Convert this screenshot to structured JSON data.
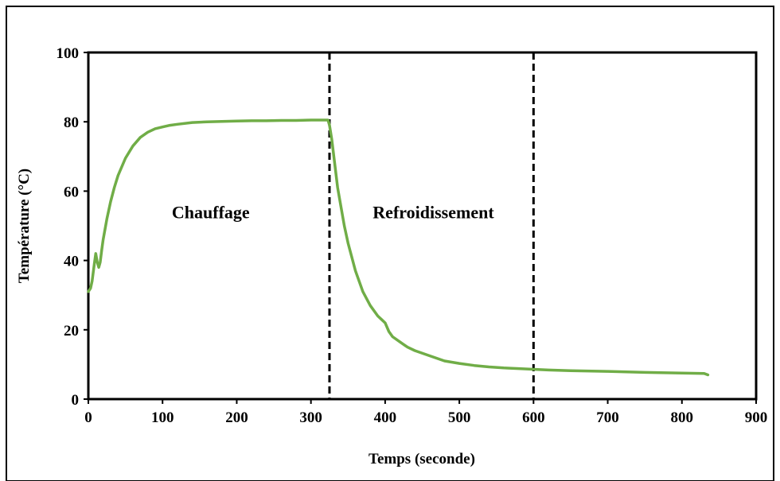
{
  "chart_data": {
    "type": "line",
    "title": "",
    "xlabel": "Temps (seconde)",
    "ylabel": "Température (°C)",
    "xlim": [
      0,
      900
    ],
    "ylim": [
      0,
      100
    ],
    "xticks": [
      0,
      100,
      200,
      300,
      400,
      500,
      600,
      700,
      800,
      900
    ],
    "yticks": [
      0,
      20,
      40,
      60,
      80,
      100
    ],
    "xtick_labels": [
      "0",
      "100",
      "200",
      "300",
      "400",
      "500",
      "600",
      "700",
      "800",
      "900"
    ],
    "ytick_labels": [
      "0",
      "20",
      "40",
      "60",
      "80",
      "100"
    ],
    "grid": false,
    "legend": "none",
    "series": [
      {
        "color": "#70ad47",
        "x": [
          0,
          3,
          5,
          8,
          10,
          12,
          14,
          16,
          18,
          20,
          25,
          30,
          35,
          40,
          50,
          60,
          70,
          80,
          90,
          100,
          110,
          120,
          140,
          160,
          180,
          200,
          220,
          240,
          260,
          280,
          300,
          310,
          320,
          323,
          325,
          328,
          332,
          336,
          340,
          345,
          350,
          360,
          370,
          380,
          390,
          395,
          400,
          405,
          410,
          420,
          430,
          440,
          460,
          480,
          500,
          520,
          540,
          560,
          580,
          600,
          620,
          650,
          700,
          750,
          800,
          830,
          835
        ],
        "y": [
          31,
          32,
          34,
          39,
          42,
          39.5,
          38,
          39.5,
          43,
          46,
          52,
          57,
          61,
          64.5,
          69.5,
          73,
          75.5,
          77,
          78,
          78.5,
          79,
          79.3,
          79.8,
          80,
          80.1,
          80.2,
          80.3,
          80.3,
          80.4,
          80.4,
          80.5,
          80.5,
          80.5,
          80.5,
          79,
          75,
          68,
          61,
          56,
          50,
          45,
          37,
          31,
          27,
          24,
          23,
          22,
          19.5,
          18,
          16.5,
          15,
          14,
          12.5,
          11,
          10.3,
          9.7,
          9.3,
          9,
          8.8,
          8.6,
          8.4,
          8.2,
          8,
          7.7,
          7.5,
          7.4,
          7
        ]
      }
    ],
    "vlines": [
      325,
      600
    ],
    "annotations": [
      {
        "text": "Chauffage",
        "x": 165,
        "y": 54
      },
      {
        "text": "Refroidissement",
        "x": 465,
        "y": 54
      }
    ]
  }
}
